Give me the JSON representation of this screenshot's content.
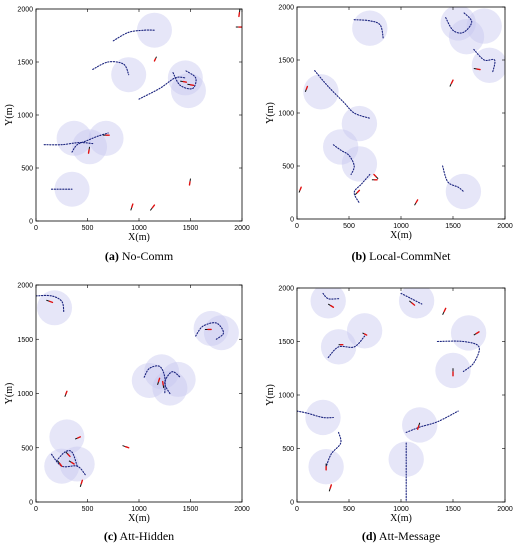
{
  "figure": {
    "panel_ids": [
      "a",
      "b",
      "c",
      "d"
    ]
  },
  "chart_data": [
    {
      "id": "a",
      "type": "scatter",
      "caption_letter": "(a)",
      "caption_text": "No-Comm",
      "xlabel": "X(m)",
      "ylabel": "Y(m)",
      "xlim": [
        0,
        2000
      ],
      "ylim": [
        0,
        2000
      ],
      "xticks": [
        "0",
        "500",
        "1000",
        "1500",
        "2000"
      ],
      "yticks": [
        "0",
        "500",
        "1000",
        "1500",
        "2000"
      ],
      "circle_radius": 170,
      "circles": [
        [
          1150,
          1800
        ],
        [
          900,
          1380
        ],
        [
          1450,
          1350
        ],
        [
          1480,
          1230
        ],
        [
          370,
          780
        ],
        [
          520,
          700
        ],
        [
          680,
          780
        ],
        [
          350,
          300
        ]
      ],
      "paths": [
        [
          [
            750,
            1700
          ],
          [
            900,
            1780
          ],
          [
            1050,
            1800
          ],
          [
            1150,
            1800
          ]
        ],
        [
          [
            550,
            1430
          ],
          [
            700,
            1500
          ],
          [
            850,
            1480
          ],
          [
            900,
            1380
          ]
        ],
        [
          [
            1000,
            1150
          ],
          [
            1200,
            1250
          ],
          [
            1350,
            1350
          ],
          [
            1450,
            1350
          ]
        ],
        [
          [
            1330,
            1400
          ],
          [
            1400,
            1280
          ],
          [
            1520,
            1250
          ],
          [
            1550,
            1350
          ],
          [
            1450,
            1420
          ]
        ],
        [
          [
            80,
            720
          ],
          [
            250,
            720
          ],
          [
            420,
            740
          ],
          [
            550,
            730
          ]
        ],
        [
          [
            350,
            650
          ],
          [
            400,
            720
          ],
          [
            500,
            760
          ],
          [
            600,
            800
          ],
          [
            700,
            830
          ]
        ],
        [
          [
            150,
            300
          ],
          [
            350,
            300
          ]
        ]
      ],
      "agents": [
        [
          [
            1170,
            1550
          ],
          [
            1150,
            1510
          ]
        ],
        [
          [
            1980,
            2000
          ],
          [
            1970,
            1930
          ]
        ],
        [
          [
            1940,
            1830
          ],
          [
            2000,
            1830
          ]
        ],
        [
          [
            1400,
            1320
          ],
          [
            1460,
            1310
          ]
        ],
        [
          [
            1470,
            1290
          ],
          [
            1530,
            1280
          ]
        ],
        [
          [
            650,
            810
          ],
          [
            710,
            810
          ]
        ],
        [
          [
            520,
            700
          ],
          [
            510,
            640
          ]
        ],
        [
          [
            1500,
            400
          ],
          [
            1490,
            340
          ]
        ],
        [
          [
            920,
            100
          ],
          [
            940,
            160
          ]
        ],
        [
          [
            1110,
            100
          ],
          [
            1150,
            150
          ]
        ]
      ]
    },
    {
      "id": "b",
      "type": "scatter",
      "caption_letter": "(b)",
      "caption_text": "Local-CommNet",
      "xlabel": "X(m)",
      "ylabel": "Y(m)",
      "xlim": [
        0,
        2000
      ],
      "ylim": [
        0,
        2000
      ],
      "xticks": [
        "0",
        "500",
        "1000",
        "1500",
        "2000"
      ],
      "yticks": [
        "0",
        "500",
        "1000",
        "1500",
        "2000"
      ],
      "circle_radius": 170,
      "circles": [
        [
          700,
          1800
        ],
        [
          1550,
          1850
        ],
        [
          1630,
          1720
        ],
        [
          1800,
          1820
        ],
        [
          1850,
          1450
        ],
        [
          230,
          1200
        ],
        [
          600,
          900
        ],
        [
          420,
          680
        ],
        [
          600,
          520
        ],
        [
          1600,
          260
        ]
      ],
      "paths": [
        [
          [
            550,
            1880
          ],
          [
            700,
            1870
          ],
          [
            800,
            1830
          ],
          [
            830,
            1700
          ]
        ],
        [
          [
            1430,
            1900
          ],
          [
            1500,
            1780
          ],
          [
            1600,
            1760
          ],
          [
            1680,
            1860
          ],
          [
            1600,
            1950
          ]
        ],
        [
          [
            1700,
            1600
          ],
          [
            1800,
            1500
          ],
          [
            1900,
            1500
          ],
          [
            1880,
            1380
          ]
        ],
        [
          [
            170,
            1400
          ],
          [
            300,
            1250
          ],
          [
            450,
            1100
          ],
          [
            550,
            1000
          ],
          [
            700,
            950
          ]
        ],
        [
          [
            350,
            700
          ],
          [
            420,
            650
          ],
          [
            500,
            600
          ],
          [
            550,
            500
          ],
          [
            520,
            420
          ]
        ],
        [
          [
            700,
            420
          ],
          [
            620,
            330
          ],
          [
            550,
            250
          ],
          [
            600,
            150
          ]
        ],
        [
          [
            1400,
            500
          ],
          [
            1450,
            350
          ],
          [
            1550,
            300
          ],
          [
            1600,
            260
          ]
        ]
      ],
      "agents": [
        [
          [
            1470,
            1250
          ],
          [
            1500,
            1310
          ]
        ],
        [
          [
            1700,
            1420
          ],
          [
            1760,
            1410
          ]
        ],
        [
          [
            80,
            1200
          ],
          [
            100,
            1250
          ]
        ],
        [
          [
            720,
            370
          ],
          [
            770,
            370
          ]
        ],
        [
          [
            780,
            380
          ],
          [
            740,
            420
          ]
        ],
        [
          [
            560,
            230
          ],
          [
            600,
            270
          ]
        ],
        [
          [
            1130,
            130
          ],
          [
            1160,
            180
          ]
        ],
        [
          [
            20,
            250
          ],
          [
            40,
            300
          ]
        ]
      ]
    },
    {
      "id": "c",
      "type": "scatter",
      "caption_letter": "(c)",
      "caption_text": "Att-Hidden",
      "xlabel": "X(m)",
      "ylabel": "Y(m)",
      "xlim": [
        0,
        2000
      ],
      "ylim": [
        0,
        2000
      ],
      "xticks": [
        "0",
        "500",
        "1000",
        "1500",
        "2000"
      ],
      "yticks": [
        "0",
        "500",
        "1000",
        "1500",
        "2000"
      ],
      "circle_radius": 170,
      "circles": [
        [
          180,
          1790
        ],
        [
          1700,
          1600
        ],
        [
          1800,
          1560
        ],
        [
          1100,
          1120
        ],
        [
          1220,
          1200
        ],
        [
          1380,
          1130
        ],
        [
          1300,
          1050
        ],
        [
          300,
          600
        ],
        [
          250,
          330
        ],
        [
          400,
          350
        ]
      ],
      "paths": [
        [
          [
            0,
            1900
          ],
          [
            150,
            1900
          ],
          [
            250,
            1850
          ],
          [
            270,
            1750
          ]
        ],
        [
          [
            1550,
            1530
          ],
          [
            1620,
            1620
          ],
          [
            1750,
            1650
          ],
          [
            1820,
            1560
          ],
          [
            1750,
            1500
          ]
        ],
        [
          [
            1050,
            1150
          ],
          [
            1100,
            1230
          ],
          [
            1200,
            1250
          ],
          [
            1250,
            1150
          ],
          [
            1250,
            1000
          ]
        ],
        [
          [
            1300,
            1000
          ],
          [
            1250,
            1100
          ],
          [
            1320,
            1200
          ],
          [
            1400,
            1150
          ]
        ],
        [
          [
            150,
            440
          ],
          [
            250,
            330
          ],
          [
            400,
            330
          ],
          [
            480,
            250
          ]
        ],
        [
          [
            200,
            380
          ],
          [
            280,
            460
          ],
          [
            350,
            460
          ],
          [
            400,
            330
          ]
        ]
      ],
      "agents": [
        [
          [
            100,
            1860
          ],
          [
            160,
            1840
          ]
        ],
        [
          [
            1640,
            1590
          ],
          [
            1700,
            1590
          ]
        ],
        [
          [
            1180,
            1080
          ],
          [
            1200,
            1140
          ]
        ],
        [
          [
            1240,
            1050
          ],
          [
            1230,
            1110
          ]
        ],
        [
          [
            280,
            970
          ],
          [
            300,
            1020
          ]
        ],
        [
          [
            380,
            580
          ],
          [
            430,
            600
          ]
        ],
        [
          [
            290,
            460
          ],
          [
            330,
            420
          ]
        ],
        [
          [
            210,
            380
          ],
          [
            250,
            330
          ]
        ],
        [
          [
            320,
            380
          ],
          [
            370,
            350
          ]
        ],
        [
          [
            430,
            140
          ],
          [
            450,
            200
          ]
        ],
        [
          [
            840,
            520
          ],
          [
            900,
            500
          ]
        ]
      ]
    },
    {
      "id": "d",
      "type": "scatter",
      "caption_letter": "(d)",
      "caption_text": "Att-Message",
      "xlabel": "X(m)",
      "ylabel": "Y(m)",
      "xlim": [
        0,
        2000
      ],
      "ylim": [
        0,
        2000
      ],
      "xticks": [
        "0",
        "500",
        "1000",
        "1500",
        "2000"
      ],
      "yticks": [
        "0",
        "500",
        "1000",
        "1500",
        "2000"
      ],
      "circle_radius": 170,
      "circles": [
        [
          300,
          1880
        ],
        [
          1150,
          1880
        ],
        [
          650,
          1600
        ],
        [
          400,
          1450
        ],
        [
          1650,
          1580
        ],
        [
          1500,
          1230
        ],
        [
          250,
          790
        ],
        [
          1180,
          720
        ],
        [
          1050,
          400
        ],
        [
          280,
          330
        ]
      ],
      "paths": [
        [
          [
            250,
            1950
          ],
          [
            300,
            1900
          ],
          [
            400,
            1900
          ]
        ],
        [
          [
            1000,
            1950
          ],
          [
            1100,
            1900
          ],
          [
            1200,
            1850
          ]
        ],
        [
          [
            300,
            1350
          ],
          [
            400,
            1450
          ],
          [
            550,
            1450
          ],
          [
            650,
            1550
          ]
        ],
        [
          [
            1350,
            1500
          ],
          [
            1600,
            1500
          ],
          [
            1750,
            1450
          ],
          [
            1700,
            1300
          ],
          [
            1600,
            1220
          ]
        ],
        [
          [
            0,
            850
          ],
          [
            100,
            830
          ],
          [
            250,
            790
          ],
          [
            350,
            790
          ]
        ],
        [
          [
            1050,
            650
          ],
          [
            1180,
            700
          ],
          [
            1350,
            750
          ],
          [
            1550,
            850
          ]
        ],
        [
          [
            1050,
            550
          ],
          [
            1050,
            400
          ],
          [
            1050,
            200
          ],
          [
            1050,
            0
          ]
        ],
        [
          [
            400,
            650
          ],
          [
            420,
            550
          ],
          [
            330,
            450
          ],
          [
            280,
            330
          ]
        ]
      ],
      "agents": [
        [
          [
            300,
            1850
          ],
          [
            350,
            1820
          ]
        ],
        [
          [
            1080,
            1880
          ],
          [
            1130,
            1840
          ]
        ],
        [
          [
            1400,
            1750
          ],
          [
            1430,
            1810
          ]
        ],
        [
          [
            630,
            1580
          ],
          [
            670,
            1560
          ]
        ],
        [
          [
            400,
            1470
          ],
          [
            440,
            1470
          ]
        ],
        [
          [
            1700,
            1560
          ],
          [
            1750,
            1590
          ]
        ],
        [
          [
            1500,
            1250
          ],
          [
            1500,
            1180
          ]
        ],
        [
          [
            1180,
            740
          ],
          [
            1160,
            680
          ]
        ],
        [
          [
            280,
            360
          ],
          [
            280,
            300
          ]
        ],
        [
          [
            310,
            100
          ],
          [
            330,
            160
          ]
        ]
      ]
    }
  ]
}
